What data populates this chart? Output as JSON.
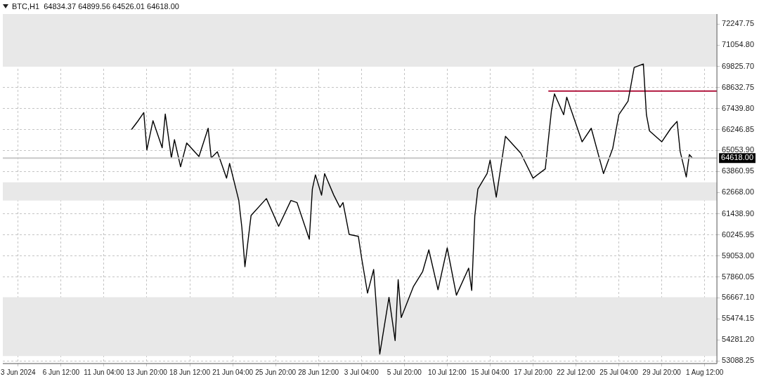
{
  "chart_data": {
    "type": "line",
    "title": "BTC,H1  64834.37 64899.56 64526.01 64618.00",
    "categories": [
      null,
      null,
      null,
      null,
      null,
      "3 Jun 2024",
      null,
      null,
      null,
      null,
      null,
      null,
      null,
      null,
      null,
      null,
      null,
      null,
      null,
      "6 Jun 12:00",
      null,
      null,
      null,
      null,
      null,
      null,
      null,
      null,
      null,
      null,
      null,
      null,
      null,
      "11 Jun 04:00",
      null,
      null,
      null,
      null,
      null,
      null,
      null,
      null,
      null,
      null,
      null,
      null,
      null,
      "13 Jun 20:00",
      null,
      null,
      null,
      null,
      null,
      null,
      null,
      null,
      null,
      null,
      null,
      null,
      null,
      "18 Jun 12:00",
      null,
      null,
      null,
      null,
      null,
      null,
      null,
      null,
      null,
      null,
      null,
      null,
      null,
      "21 Jun 04:00",
      null,
      null,
      null,
      null,
      null,
      null,
      null,
      null,
      null,
      null,
      null,
      null,
      null,
      "25 Jun 20:00",
      null,
      null,
      null,
      null,
      null,
      null,
      null,
      null,
      null,
      null,
      null,
      null,
      null,
      "28 Jun 12:00",
      null,
      null,
      null,
      null,
      null,
      null,
      null,
      null,
      null,
      null,
      null,
      null,
      null,
      "3 Jul 04:00",
      null,
      null,
      null,
      null,
      null,
      null,
      null,
      null,
      null,
      null,
      null,
      null,
      null,
      "5 Jul 20:00",
      null,
      null,
      null,
      null,
      null,
      null,
      null,
      null,
      null,
      null,
      null,
      null,
      null,
      "10 Jul 12:00",
      null,
      null,
      null,
      null,
      null,
      null,
      null,
      null,
      null,
      null,
      null,
      null,
      null,
      "15 Jul 04:00",
      null,
      null,
      null,
      null,
      null,
      null,
      null,
      null,
      null,
      null,
      null,
      null,
      null,
      "17 Jul 20:00",
      null,
      null,
      null,
      null,
      null,
      null,
      null,
      null,
      null,
      null,
      null,
      null,
      null,
      "22 Jul 12:00",
      null,
      null,
      null,
      null,
      null,
      null,
      null,
      null,
      null,
      null,
      null,
      null,
      null,
      "25 Jul 04:00",
      null,
      null,
      null,
      null,
      null,
      null,
      null,
      null,
      null,
      null,
      null,
      null,
      null,
      "29 Jul 20:00",
      null,
      null,
      null,
      null,
      null,
      null,
      null,
      null,
      null,
      null,
      null,
      null,
      null,
      "1 Aug 12:00",
      null,
      null,
      null,
      null
    ],
    "series": [
      {
        "color": "#000000",
        "values": [
          null,
          null,
          null,
          null,
          null,
          null,
          null,
          null,
          null,
          null,
          null,
          null,
          null,
          null,
          null,
          null,
          null,
          null,
          null,
          null,
          null,
          null,
          null,
          null,
          null,
          null,
          null,
          null,
          null,
          null,
          null,
          null,
          null,
          null,
          null,
          null,
          null,
          null,
          null,
          null,
          null,
          null,
          66250,
          null,
          66710,
          null,
          67210,
          65090,
          null,
          66750,
          null,
          null,
          65210,
          67130,
          null,
          64630,
          65670,
          null,
          64130,
          null,
          65480,
          null,
          null,
          null,
          64710,
          null,
          null,
          66320,
          64630,
          null,
          64980,
          null,
          null,
          63480,
          64320,
          null,
          null,
          62210,
          60670,
          58440,
          null,
          61360,
          null,
          null,
          null,
          null,
          62320,
          null,
          null,
          null,
          60740,
          null,
          null,
          null,
          62210,
          null,
          62090,
          null,
          null,
          null,
          60010,
          62860,
          63670,
          null,
          62510,
          63740,
          null,
          null,
          62510,
          null,
          61820,
          62090,
          null,
          60280,
          null,
          null,
          60170,
          59010,
          null,
          56940,
          null,
          58280,
          null,
          53470,
          null,
          null,
          56700,
          null,
          54240,
          57700,
          55550,
          null,
          null,
          null,
          57320,
          null,
          null,
          58170,
          null,
          59400,
          null,
          null,
          57130,
          null,
          null,
          59510,
          null,
          null,
          56820,
          null,
          null,
          null,
          58360,
          57090,
          61320,
          62860,
          null,
          null,
          63740,
          64510,
          null,
          62400,
          null,
          null,
          65860,
          null,
          null,
          null,
          null,
          64900,
          null,
          null,
          null,
          63480,
          null,
          null,
          null,
          64010,
          null,
          67320,
          68280,
          null,
          null,
          67090,
          68090,
          null,
          null,
          null,
          null,
          65550,
          null,
          null,
          66320,
          null,
          null,
          null,
          63740,
          null,
          null,
          65170,
          null,
          67090,
          null,
          null,
          67860,
          null,
          69780,
          null,
          null,
          69980,
          67090,
          66170,
          null,
          null,
          null,
          65550,
          null,
          null,
          66320,
          null,
          66710,
          65010,
          null,
          63550,
          64820,
          64620,
          null,
          null,
          null,
          null,
          null,
          null,
          null,
          null
        ]
      },
      {
        "type": "line",
        "color": "#b0143c",
        "values": [
          null,
          null,
          null,
          null,
          null,
          null,
          null,
          null,
          null,
          null,
          null,
          null,
          null,
          null,
          null,
          null,
          null,
          null,
          null,
          null,
          null,
          null,
          null,
          null,
          null,
          null,
          null,
          null,
          null,
          null,
          null,
          null,
          null,
          null,
          null,
          null,
          null,
          null,
          null,
          null,
          null,
          null,
          null,
          null,
          null,
          null,
          null,
          null,
          null,
          null,
          null,
          null,
          null,
          null,
          null,
          null,
          null,
          null,
          null,
          null,
          null,
          null,
          null,
          null,
          null,
          null,
          null,
          null,
          null,
          null,
          null,
          null,
          null,
          null,
          null,
          null,
          null,
          null,
          null,
          null,
          null,
          null,
          null,
          null,
          null,
          null,
          null,
          null,
          null,
          null,
          null,
          null,
          null,
          null,
          null,
          null,
          null,
          null,
          null,
          null,
          null,
          null,
          null,
          null,
          null,
          null,
          null,
          null,
          null,
          null,
          null,
          null,
          null,
          null,
          null,
          null,
          null,
          null,
          null,
          null,
          null,
          null,
          null,
          null,
          null,
          null,
          null,
          null,
          null,
          null,
          null,
          null,
          null,
          null,
          null,
          null,
          null,
          null,
          null,
          null,
          null,
          null,
          null,
          null,
          null,
          null,
          null,
          null,
          null,
          null,
          null,
          null,
          null,
          null,
          null,
          null,
          null,
          null,
          null,
          null,
          null,
          null,
          null,
          null,
          null,
          null,
          null,
          null,
          null,
          null,
          null,
          null,
          null,
          null,
          null,
          null,
          null,
          null,
          68440,
          null,
          null,
          null,
          null,
          null,
          null,
          null,
          null,
          null,
          null,
          null,
          null,
          null,
          null,
          null,
          null,
          null,
          null,
          null,
          null,
          null,
          null,
          null,
          null,
          null,
          null,
          null,
          null,
          null,
          null,
          null,
          null,
          null,
          null,
          null,
          null,
          null,
          null,
          null,
          null,
          null,
          null,
          null,
          null,
          null,
          null,
          null,
          null,
          null,
          null,
          null,
          null,
          null,
          null,
          68440
        ]
      }
    ],
    "ylim": [
      52930,
      72820
    ],
    "yticks": [
      {
        "value": 53088.25,
        "label": "53088.25"
      },
      {
        "value": 54281.2,
        "label": "54281.20"
      },
      {
        "value": 55474.15,
        "label": "55474.15"
      },
      {
        "value": 56667.1,
        "label": "56667.10"
      },
      {
        "value": 57860.05,
        "label": "57860.05"
      },
      {
        "value": 59053,
        "label": "59053.00"
      },
      {
        "value": 60245.95,
        "label": "60245.95"
      },
      {
        "value": 61438.9,
        "label": "61438.90"
      },
      {
        "value": 62668,
        "label": "62668.00"
      },
      {
        "value": 63860.95,
        "label": "63860.95"
      },
      {
        "value": 65053.9,
        "label": "65053.90"
      },
      {
        "value": 66246.85,
        "label": "66246.85"
      },
      {
        "value": 67439.8,
        "label": "67439.80"
      },
      {
        "value": 68632.75,
        "label": "68632.75"
      },
      {
        "value": 69825.7,
        "label": "69825.70"
      },
      {
        "value": 71054.8,
        "label": "71054.80"
      },
      {
        "value": 72247.75,
        "label": "72247.75"
      }
    ],
    "ref_lines": [
      {
        "axis": "y",
        "value": 64618,
        "label": "64618.00",
        "color": "#c8c8c8"
      }
    ],
    "bands": [
      {
        "axis": "y",
        "from": 69820,
        "to": 72820,
        "color": "#e8e8e8"
      },
      {
        "axis": "y",
        "from": 62210,
        "to": 63240,
        "color": "#e8e8e8"
      },
      {
        "axis": "y",
        "from": 53360,
        "to": 56700,
        "color": "#e8e8e8"
      }
    ],
    "grid": true,
    "legend": false,
    "marker": "none",
    "line_style": "solid"
  }
}
